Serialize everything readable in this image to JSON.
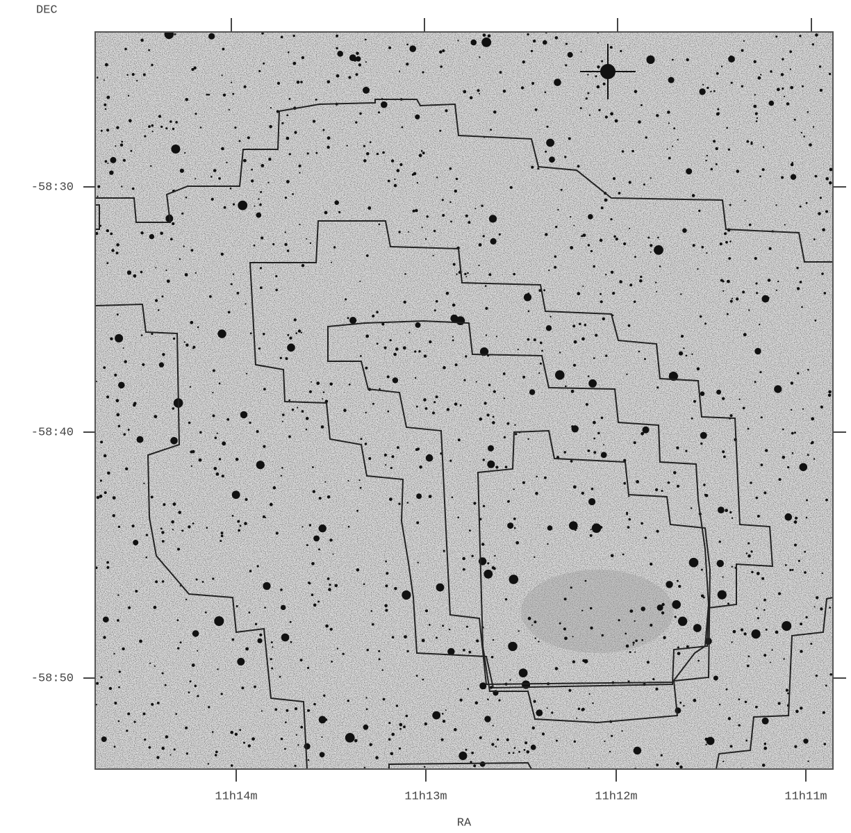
{
  "axes": {
    "y_label": "DEC",
    "x_label": "RA",
    "y_ticks": [
      "-58:30",
      "-58:40",
      "-58:50"
    ],
    "x_ticks": [
      "11h14m",
      "11h13m",
      "11h12m",
      "11h11m"
    ]
  }
}
